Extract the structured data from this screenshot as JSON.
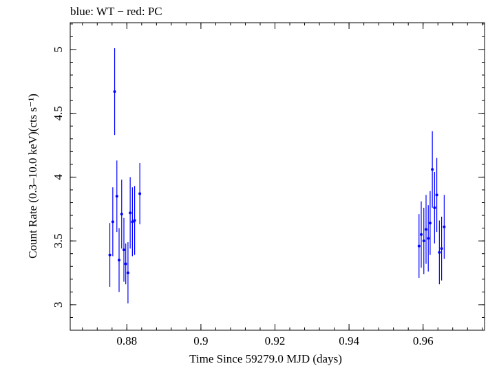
{
  "chart_data": {
    "type": "scatter",
    "title": "blue: WT − red: PC",
    "xlabel": "Time Since 59279.0 MJD (days)",
    "ylabel": "Count Rate (0.3–10.0 keV)(cts s⁻¹)",
    "xlim": [
      0.8647,
      0.9766
    ],
    "ylim": [
      2.8,
      5.21
    ],
    "x_ticks": [
      0.88,
      0.9,
      0.92,
      0.94,
      0.96
    ],
    "x_tick_labels": [
      "0.88",
      "0.9",
      "0.92",
      "0.94",
      "0.96"
    ],
    "y_ticks": [
      3,
      3.5,
      4,
      4.5,
      5
    ],
    "y_tick_labels": [
      "3",
      "3.5",
      "4",
      "4.5",
      "5"
    ],
    "grid": false,
    "series": [
      {
        "color": "#0000ff",
        "points": [
          {
            "x": 0.8754,
            "y": 3.39,
            "yerr": 0.25
          },
          {
            "x": 0.8762,
            "y": 3.65,
            "yerr": 0.27
          },
          {
            "x": 0.8767,
            "y": 4.67,
            "yerr": 0.34
          },
          {
            "x": 0.8773,
            "y": 3.85,
            "yerr": 0.28
          },
          {
            "x": 0.8779,
            "y": 3.35,
            "yerr": 0.25
          },
          {
            "x": 0.8786,
            "y": 3.71,
            "yerr": 0.27
          },
          {
            "x": 0.8792,
            "y": 3.43,
            "yerr": 0.25
          },
          {
            "x": 0.8797,
            "y": 3.32,
            "yerr": 0.16
          },
          {
            "x": 0.8803,
            "y": 3.25,
            "yerr": 0.24
          },
          {
            "x": 0.8809,
            "y": 3.72,
            "yerr": 0.28
          },
          {
            "x": 0.8815,
            "y": 3.65,
            "yerr": 0.27
          },
          {
            "x": 0.8821,
            "y": 3.66,
            "yerr": 0.27
          },
          {
            "x": 0.8835,
            "y": 3.87,
            "yerr": 0.24
          },
          {
            "x": 0.9589,
            "y": 3.46,
            "yerr": 0.25
          },
          {
            "x": 0.9595,
            "y": 3.55,
            "yerr": 0.26
          },
          {
            "x": 0.9602,
            "y": 3.5,
            "yerr": 0.26
          },
          {
            "x": 0.9608,
            "y": 3.59,
            "yerr": 0.27
          },
          {
            "x": 0.9614,
            "y": 3.52,
            "yerr": 0.26
          },
          {
            "x": 0.9619,
            "y": 3.64,
            "yerr": 0.25
          },
          {
            "x": 0.9625,
            "y": 4.06,
            "yerr": 0.3
          },
          {
            "x": 0.9631,
            "y": 3.76,
            "yerr": 0.28
          },
          {
            "x": 0.9637,
            "y": 3.86,
            "yerr": 0.29
          },
          {
            "x": 0.9644,
            "y": 3.41,
            "yerr": 0.25
          },
          {
            "x": 0.965,
            "y": 3.44,
            "yerr": 0.25
          },
          {
            "x": 0.9657,
            "y": 3.61,
            "yerr": 0.25
          }
        ]
      }
    ]
  }
}
